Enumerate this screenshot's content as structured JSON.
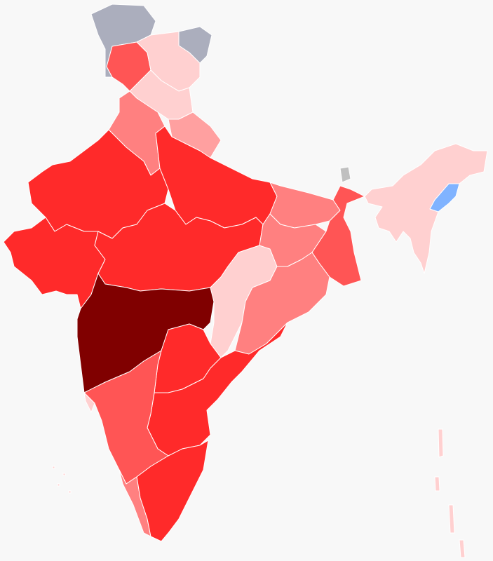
{
  "map": {
    "background": "#f8f8f8",
    "border": "#ffffff",
    "regions": [
      {
        "color": "#abaebd"
      },
      {
        "color": "#abaebd"
      },
      {
        "color": "#ff5555"
      },
      {
        "color": "#ffd0d0"
      },
      {
        "color": "#ffd0d0"
      },
      {
        "color": "#ff8080"
      },
      {
        "color": "#ffa0a0"
      },
      {
        "color": "#ff2a2a"
      },
      {
        "color": "#ff2a2a"
      },
      {
        "color": "#ff2a2a"
      },
      {
        "color": "#ff2a2a"
      },
      {
        "color": "#800000"
      },
      {
        "color": "#ffd0d0"
      },
      {
        "color": "#ff8080"
      },
      {
        "color": "#ff8080"
      },
      {
        "color": "#ff5555"
      },
      {
        "color": "#ff8080"
      },
      {
        "color": "#ff2a2a"
      },
      {
        "color": "#ff2a2a"
      },
      {
        "color": "#ff5555"
      },
      {
        "color": "#ffd0d0"
      },
      {
        "color": "#ff8080"
      },
      {
        "color": "#ff2a2a"
      },
      {
        "color": "#ffd0d0"
      },
      {
        "color": "#80b3ff"
      },
      {
        "color": "#c0c0c0"
      },
      {
        "color": "#ffd0d0"
      },
      {
        "color": "#ffd0d0"
      }
    ]
  }
}
